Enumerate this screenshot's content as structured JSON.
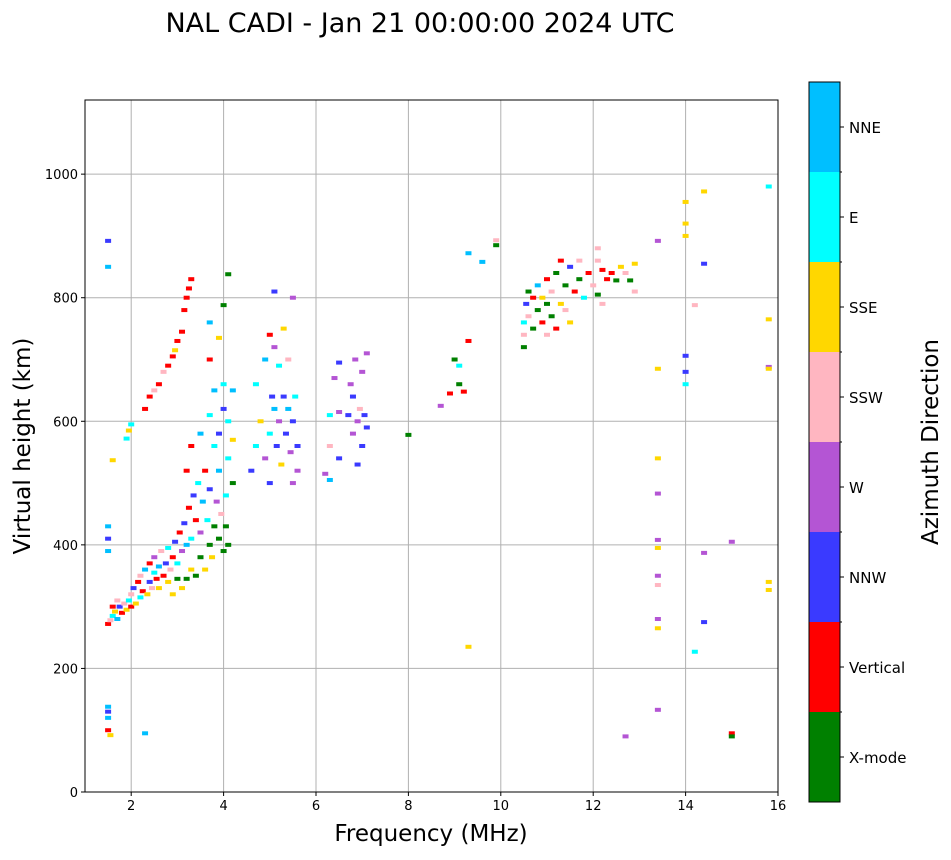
{
  "chart_data": {
    "type": "scatter",
    "title": "NAL CADI - Jan 21 00:00:00 2024 UTC",
    "xlabel": "Frequency (MHz)",
    "ylabel": "Virtual height (km)",
    "xlim": [
      1,
      16
    ],
    "ylim": [
      0,
      1120
    ],
    "xticks": [
      2,
      4,
      6,
      8,
      10,
      12,
      14,
      16
    ],
    "yticks": [
      0,
      200,
      400,
      600,
      800,
      1000
    ],
    "grid": true,
    "colorbar": {
      "label": "Azimuth Direction",
      "categories": [
        "X-mode",
        "Vertical",
        "NNW",
        "W",
        "SSW",
        "SSE",
        "E",
        "NNE"
      ],
      "colors": [
        "#008000",
        "#ff0000",
        "#3a3aff",
        "#b455d4",
        "#ffb6c1",
        "#ffd700",
        "#00ffff",
        "#00bfff"
      ]
    },
    "point_format": "[frequency_MHz, virtual_height_km, category_index]",
    "points": [
      [
        1.5,
        892,
        2
      ],
      [
        1.5,
        850,
        7
      ],
      [
        1.5,
        430,
        7
      ],
      [
        1.5,
        410,
        2
      ],
      [
        1.5,
        390,
        7
      ],
      [
        1.5,
        138,
        7
      ],
      [
        1.5,
        130,
        2
      ],
      [
        1.5,
        120,
        7
      ],
      [
        1.5,
        100,
        1
      ],
      [
        1.55,
        92,
        5
      ],
      [
        2.3,
        95,
        7
      ],
      [
        1.5,
        272,
        1
      ],
      [
        1.55,
        278,
        4
      ],
      [
        1.6,
        285,
        6
      ],
      [
        1.6,
        300,
        1
      ],
      [
        1.65,
        292,
        5
      ],
      [
        1.7,
        310,
        4
      ],
      [
        1.7,
        280,
        7
      ],
      [
        1.75,
        300,
        2
      ],
      [
        1.8,
        290,
        1
      ],
      [
        1.85,
        305,
        4
      ],
      [
        1.9,
        295,
        5
      ],
      [
        1.95,
        310,
        6
      ],
      [
        2.0,
        300,
        1
      ],
      [
        2.0,
        320,
        4
      ],
      [
        2.05,
        330,
        2
      ],
      [
        2.1,
        305,
        5
      ],
      [
        2.15,
        340,
        1
      ],
      [
        2.2,
        315,
        6
      ],
      [
        2.2,
        350,
        4
      ],
      [
        2.25,
        325,
        1
      ],
      [
        2.3,
        360,
        7
      ],
      [
        2.35,
        320,
        5
      ],
      [
        2.4,
        340,
        2
      ],
      [
        2.4,
        370,
        1
      ],
      [
        2.45,
        330,
        4
      ],
      [
        2.5,
        355,
        6
      ],
      [
        2.5,
        380,
        3
      ],
      [
        2.55,
        345,
        1
      ],
      [
        2.6,
        330,
        5
      ],
      [
        2.6,
        365,
        7
      ],
      [
        2.65,
        390,
        4
      ],
      [
        2.7,
        350,
        1
      ],
      [
        2.75,
        370,
        2
      ],
      [
        2.8,
        340,
        5
      ],
      [
        2.8,
        395,
        6
      ],
      [
        2.85,
        360,
        4
      ],
      [
        2.9,
        320,
        5
      ],
      [
        2.9,
        380,
        1
      ],
      [
        2.95,
        405,
        2
      ],
      [
        3.0,
        345,
        0
      ],
      [
        3.0,
        370,
        6
      ],
      [
        3.05,
        420,
        1
      ],
      [
        3.1,
        330,
        5
      ],
      [
        3.1,
        390,
        3
      ],
      [
        3.15,
        435,
        2
      ],
      [
        3.2,
        345,
        0
      ],
      [
        3.2,
        400,
        7
      ],
      [
        3.25,
        460,
        1
      ],
      [
        3.3,
        360,
        5
      ],
      [
        3.3,
        410,
        6
      ],
      [
        3.35,
        480,
        2
      ],
      [
        3.4,
        350,
        0
      ],
      [
        3.4,
        440,
        1
      ],
      [
        3.45,
        500,
        6
      ],
      [
        3.5,
        380,
        0
      ],
      [
        3.5,
        420,
        3
      ],
      [
        3.55,
        470,
        7
      ],
      [
        3.6,
        360,
        5
      ],
      [
        3.6,
        520,
        1
      ],
      [
        3.65,
        440,
        6
      ],
      [
        3.7,
        400,
        0
      ],
      [
        3.7,
        490,
        2
      ],
      [
        3.75,
        380,
        5
      ],
      [
        3.8,
        430,
        0
      ],
      [
        3.8,
        560,
        6
      ],
      [
        3.85,
        470,
        3
      ],
      [
        3.9,
        410,
        0
      ],
      [
        3.9,
        520,
        7
      ],
      [
        3.95,
        450,
        4
      ],
      [
        4.0,
        390,
        0
      ],
      [
        4.05,
        430,
        0
      ],
      [
        4.05,
        480,
        6
      ],
      [
        4.1,
        400,
        0
      ],
      [
        4.1,
        540,
        6
      ],
      [
        3.3,
        560,
        1
      ],
      [
        3.2,
        520,
        1
      ],
      [
        3.5,
        580,
        7
      ],
      [
        3.7,
        610,
        6
      ],
      [
        3.8,
        650,
        7
      ],
      [
        4.0,
        660,
        6
      ],
      [
        4.2,
        650,
        7
      ],
      [
        4.1,
        600,
        6
      ],
      [
        3.9,
        580,
        2
      ],
      [
        4.2,
        570,
        5
      ],
      [
        4.0,
        620,
        2
      ],
      [
        4.1,
        838,
        0
      ],
      [
        4.0,
        788,
        0
      ],
      [
        3.7,
        760,
        7
      ],
      [
        3.7,
        700,
        1
      ],
      [
        3.9,
        735,
        5
      ],
      [
        4.2,
        500,
        0
      ],
      [
        1.9,
        572,
        6
      ],
      [
        1.95,
        585,
        5
      ],
      [
        2.0,
        595,
        6
      ],
      [
        2.3,
        620,
        1
      ],
      [
        2.4,
        640,
        1
      ],
      [
        2.5,
        650,
        4
      ],
      [
        2.6,
        660,
        1
      ],
      [
        2.7,
        680,
        4
      ],
      [
        2.8,
        690,
        1
      ],
      [
        2.9,
        705,
        1
      ],
      [
        2.95,
        715,
        5
      ],
      [
        3.0,
        730,
        1
      ],
      [
        3.1,
        745,
        1
      ],
      [
        3.15,
        780,
        1
      ],
      [
        3.2,
        800,
        1
      ],
      [
        3.25,
        815,
        1
      ],
      [
        3.3,
        830,
        1
      ],
      [
        1.6,
        537,
        5
      ],
      [
        4.6,
        520,
        2
      ],
      [
        4.7,
        560,
        6
      ],
      [
        4.7,
        660,
        6
      ],
      [
        4.8,
        600,
        5
      ],
      [
        4.9,
        540,
        3
      ],
      [
        4.9,
        700,
        7
      ],
      [
        5.0,
        500,
        2
      ],
      [
        5.0,
        580,
        6
      ],
      [
        5.0,
        740,
        1
      ],
      [
        5.05,
        640,
        2
      ],
      [
        5.1,
        620,
        7
      ],
      [
        5.1,
        720,
        3
      ],
      [
        5.15,
        560,
        2
      ],
      [
        5.2,
        600,
        3
      ],
      [
        5.2,
        690,
        6
      ],
      [
        5.25,
        530,
        5
      ],
      [
        5.3,
        640,
        2
      ],
      [
        5.3,
        750,
        5
      ],
      [
        5.35,
        580,
        2
      ],
      [
        5.4,
        620,
        7
      ],
      [
        5.4,
        700,
        4
      ],
      [
        5.45,
        550,
        3
      ],
      [
        5.5,
        600,
        2
      ],
      [
        5.5,
        500,
        3
      ],
      [
        5.55,
        640,
        6
      ],
      [
        5.6,
        520,
        3
      ],
      [
        5.6,
        560,
        2
      ],
      [
        5.5,
        800,
        3
      ],
      [
        5.1,
        810,
        2
      ],
      [
        6.2,
        515,
        3
      ],
      [
        6.3,
        505,
        7
      ],
      [
        6.3,
        560,
        4
      ],
      [
        6.3,
        610,
        6
      ],
      [
        6.4,
        670,
        3
      ],
      [
        6.5,
        540,
        2
      ],
      [
        6.5,
        615,
        3
      ],
      [
        6.5,
        695,
        2
      ],
      [
        6.7,
        610,
        2
      ],
      [
        6.8,
        580,
        3
      ],
      [
        6.8,
        640,
        2
      ],
      [
        6.9,
        600,
        3
      ],
      [
        6.85,
        700,
        3
      ],
      [
        6.9,
        530,
        2
      ],
      [
        6.95,
        620,
        4
      ],
      [
        7.0,
        560,
        2
      ],
      [
        7.0,
        680,
        3
      ],
      [
        7.05,
        610,
        2
      ],
      [
        6.75,
        660,
        3
      ],
      [
        7.1,
        710,
        3
      ],
      [
        7.1,
        590,
        2
      ],
      [
        8.0,
        578,
        0
      ],
      [
        8.7,
        625,
        3
      ],
      [
        8.9,
        645,
        1
      ],
      [
        9.0,
        700,
        0
      ],
      [
        9.1,
        660,
        0
      ],
      [
        9.1,
        690,
        6
      ],
      [
        9.2,
        648,
        1
      ],
      [
        9.3,
        730,
        1
      ],
      [
        9.3,
        872,
        7
      ],
      [
        9.6,
        858,
        7
      ],
      [
        9.9,
        885,
        0
      ],
      [
        9.9,
        893,
        4
      ],
      [
        9.3,
        235,
        5
      ],
      [
        10.5,
        720,
        0
      ],
      [
        10.5,
        740,
        4
      ],
      [
        10.5,
        760,
        6
      ],
      [
        10.55,
        790,
        2
      ],
      [
        10.6,
        810,
        0
      ],
      [
        10.6,
        770,
        4
      ],
      [
        10.7,
        750,
        0
      ],
      [
        10.7,
        800,
        1
      ],
      [
        10.8,
        780,
        0
      ],
      [
        10.8,
        820,
        7
      ],
      [
        10.9,
        760,
        1
      ],
      [
        10.9,
        800,
        5
      ],
      [
        11.0,
        740,
        4
      ],
      [
        11.0,
        790,
        0
      ],
      [
        11.0,
        830,
        1
      ],
      [
        11.1,
        770,
        0
      ],
      [
        11.1,
        810,
        4
      ],
      [
        11.2,
        840,
        0
      ],
      [
        11.2,
        750,
        1
      ],
      [
        11.3,
        790,
        5
      ],
      [
        11.3,
        860,
        1
      ],
      [
        11.4,
        820,
        0
      ],
      [
        11.4,
        780,
        4
      ],
      [
        11.5,
        850,
        2
      ],
      [
        11.5,
        760,
        5
      ],
      [
        11.6,
        810,
        1
      ],
      [
        11.7,
        830,
        0
      ],
      [
        11.7,
        860,
        4
      ],
      [
        11.8,
        800,
        6
      ],
      [
        11.9,
        840,
        1
      ],
      [
        12.0,
        820,
        4
      ],
      [
        12.1,
        805,
        0
      ],
      [
        12.1,
        860,
        4
      ],
      [
        12.2,
        845,
        1
      ],
      [
        12.3,
        830,
        1
      ],
      [
        12.4,
        840,
        1
      ],
      [
        12.5,
        828,
        0
      ],
      [
        12.6,
        850,
        5
      ],
      [
        12.7,
        840,
        4
      ],
      [
        12.8,
        828,
        0
      ],
      [
        12.9,
        855,
        5
      ],
      [
        12.9,
        810,
        4
      ],
      [
        12.2,
        790,
        4
      ],
      [
        12.1,
        880,
        4
      ],
      [
        13.4,
        892,
        3
      ],
      [
        13.4,
        685,
        5
      ],
      [
        13.4,
        540,
        5
      ],
      [
        13.4,
        483,
        3
      ],
      [
        13.4,
        408,
        3
      ],
      [
        13.4,
        395,
        5
      ],
      [
        13.4,
        350,
        3
      ],
      [
        13.4,
        335,
        4
      ],
      [
        13.4,
        280,
        3
      ],
      [
        13.4,
        265,
        5
      ],
      [
        13.4,
        133,
        3
      ],
      [
        12.7,
        90,
        3
      ],
      [
        14.0,
        955,
        5
      ],
      [
        14.0,
        920,
        5
      ],
      [
        14.0,
        900,
        5
      ],
      [
        14.0,
        706,
        2
      ],
      [
        14.0,
        680,
        2
      ],
      [
        14.0,
        660,
        6
      ],
      [
        14.2,
        788,
        4
      ],
      [
        14.4,
        972,
        5
      ],
      [
        14.4,
        855,
        2
      ],
      [
        14.4,
        387,
        3
      ],
      [
        14.4,
        275,
        2
      ],
      [
        14.2,
        227,
        6
      ],
      [
        15.0,
        405,
        3
      ],
      [
        15.0,
        95,
        1
      ],
      [
        15.0,
        90,
        0
      ],
      [
        15.8,
        980,
        6
      ],
      [
        15.8,
        765,
        5
      ],
      [
        15.8,
        688,
        3
      ],
      [
        15.8,
        685,
        5
      ],
      [
        15.8,
        340,
        5
      ],
      [
        15.8,
        327,
        5
      ]
    ]
  }
}
